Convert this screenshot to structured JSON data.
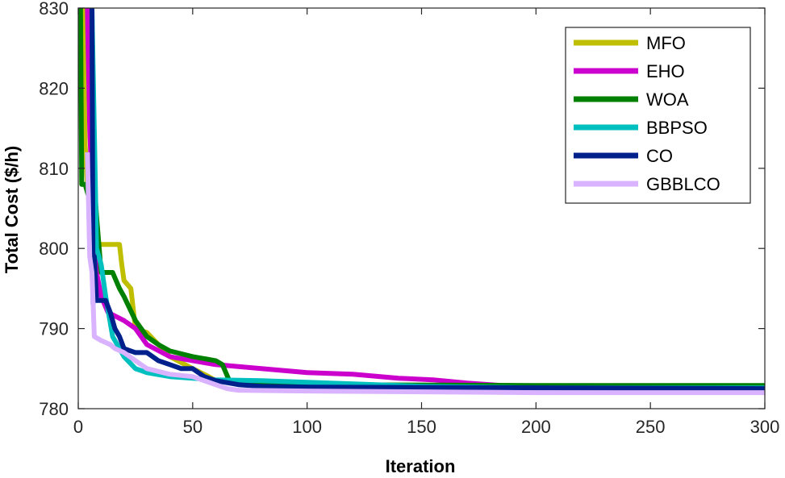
{
  "chart_data": {
    "type": "line",
    "title": "",
    "xlabel": "Iteration",
    "ylabel": "Total Cost ($/h)",
    "xlim": [
      0,
      300
    ],
    "ylim": [
      780,
      830
    ],
    "xticks": [
      "0",
      "50",
      "100",
      "150",
      "200",
      "250",
      "300"
    ],
    "yticks": [
      "780",
      "790",
      "800",
      "810",
      "820",
      "830"
    ],
    "grid": false,
    "legend_position": "top-right",
    "series": [
      {
        "name": "MFO",
        "color": "#bfbf00",
        "points": [
          [
            1,
            830
          ],
          [
            2,
            830
          ],
          [
            3,
            813
          ],
          [
            4,
            808
          ],
          [
            6,
            801
          ],
          [
            10,
            800.5
          ],
          [
            18,
            800.5
          ],
          [
            19,
            798
          ],
          [
            20,
            796
          ],
          [
            23,
            795
          ],
          [
            25,
            790
          ],
          [
            30,
            789.5
          ],
          [
            40,
            786.5
          ],
          [
            50,
            785
          ],
          [
            57,
            784
          ],
          [
            60,
            783.5
          ],
          [
            100,
            783
          ],
          [
            200,
            782.8
          ],
          [
            300,
            782.8
          ]
        ]
      },
      {
        "name": "EHO",
        "color": "#cc00cc",
        "points": [
          [
            4,
            830
          ],
          [
            5,
            815
          ],
          [
            7,
            800
          ],
          [
            8,
            797
          ],
          [
            10,
            794
          ],
          [
            13,
            792
          ],
          [
            20,
            791
          ],
          [
            25,
            790
          ],
          [
            30,
            788
          ],
          [
            40,
            786.5
          ],
          [
            50,
            786
          ],
          [
            60,
            785.5
          ],
          [
            80,
            785
          ],
          [
            100,
            784.5
          ],
          [
            120,
            784.3
          ],
          [
            140,
            783.8
          ],
          [
            155,
            783.6
          ],
          [
            170,
            783.2
          ],
          [
            185,
            782.9
          ],
          [
            200,
            782.8
          ],
          [
            300,
            782.8
          ]
        ]
      },
      {
        "name": "WOA",
        "color": "#008000",
        "points": [
          [
            1,
            830
          ],
          [
            1.5,
            808
          ],
          [
            3,
            808
          ],
          [
            5,
            806
          ],
          [
            7,
            808
          ],
          [
            8,
            804
          ],
          [
            10,
            797
          ],
          [
            15,
            797
          ],
          [
            18,
            795
          ],
          [
            20,
            794
          ],
          [
            25,
            791
          ],
          [
            30,
            789
          ],
          [
            35,
            788
          ],
          [
            40,
            787.2
          ],
          [
            50,
            786.5
          ],
          [
            60,
            786
          ],
          [
            63,
            785.5
          ],
          [
            66,
            783.5
          ],
          [
            70,
            783.2
          ],
          [
            100,
            783
          ],
          [
            200,
            782.9
          ],
          [
            300,
            782.9
          ]
        ]
      },
      {
        "name": "BBPSO",
        "color": "#00bfbf",
        "points": [
          [
            6,
            830
          ],
          [
            8,
            800
          ],
          [
            10,
            798
          ],
          [
            12,
            794
          ],
          [
            15,
            789
          ],
          [
            18,
            787.5
          ],
          [
            20,
            786.5
          ],
          [
            25,
            785
          ],
          [
            30,
            784.5
          ],
          [
            40,
            784
          ],
          [
            50,
            783.8
          ],
          [
            60,
            783.6
          ],
          [
            80,
            783.5
          ],
          [
            100,
            783.3
          ],
          [
            150,
            782.8
          ],
          [
            200,
            782.6
          ],
          [
            300,
            782.6
          ]
        ]
      },
      {
        "name": "CO",
        "color": "#00208c",
        "points": [
          [
            6,
            830
          ],
          [
            6.5,
            793
          ],
          [
            7,
            799
          ],
          [
            8,
            793.5
          ],
          [
            12,
            793.5
          ],
          [
            14,
            792
          ],
          [
            16,
            790
          ],
          [
            18,
            789
          ],
          [
            20,
            787.5
          ],
          [
            25,
            787
          ],
          [
            30,
            787
          ],
          [
            35,
            786
          ],
          [
            40,
            785.5
          ],
          [
            45,
            785
          ],
          [
            50,
            785
          ],
          [
            55,
            784
          ],
          [
            60,
            783.5
          ],
          [
            70,
            783
          ],
          [
            80,
            782.8
          ],
          [
            100,
            782.7
          ],
          [
            300,
            782.5
          ]
        ]
      },
      {
        "name": "GBBLCO",
        "color": "#d9b3ff",
        "points": [
          [
            4,
            812
          ],
          [
            5,
            799
          ],
          [
            6,
            797
          ],
          [
            7,
            789
          ],
          [
            10,
            788.5
          ],
          [
            14,
            788
          ],
          [
            16,
            787.5
          ],
          [
            20,
            787
          ],
          [
            25,
            786
          ],
          [
            30,
            785
          ],
          [
            40,
            784.3
          ],
          [
            50,
            784
          ],
          [
            60,
            783
          ],
          [
            65,
            782.5
          ],
          [
            70,
            782.3
          ],
          [
            100,
            782.2
          ],
          [
            200,
            782
          ],
          [
            300,
            782
          ]
        ]
      }
    ]
  }
}
